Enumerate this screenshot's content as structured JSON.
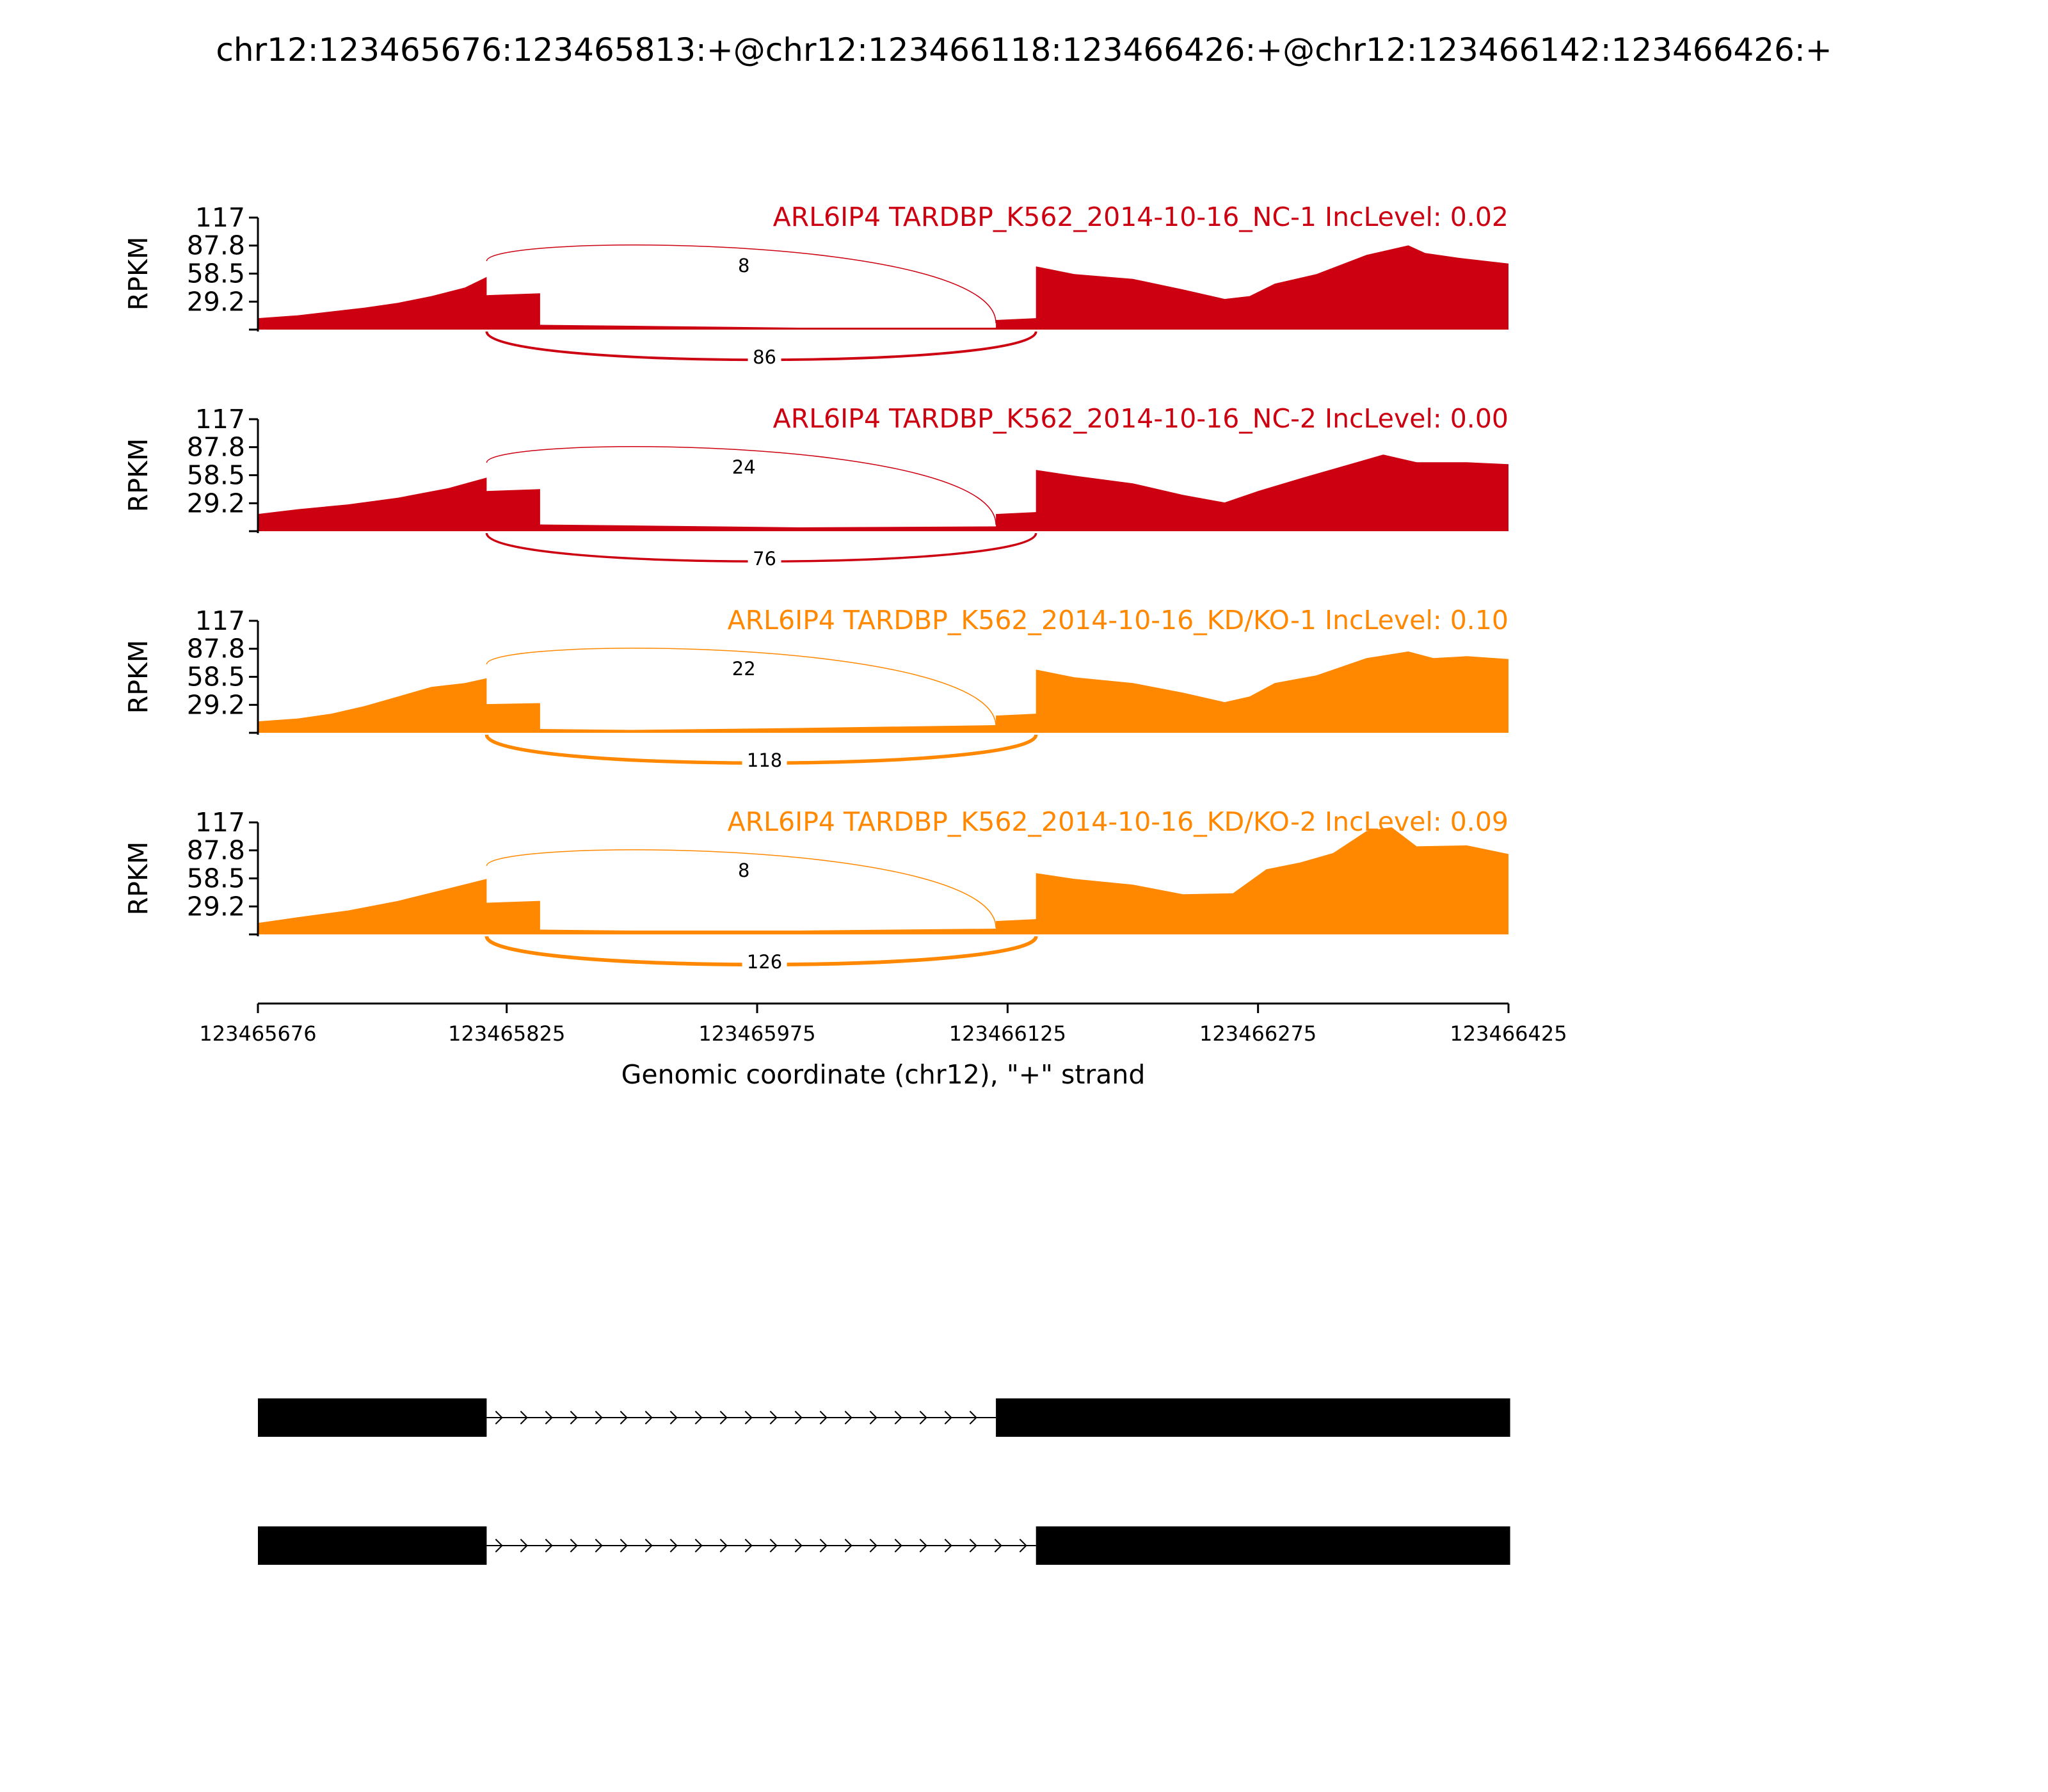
{
  "title": "chr12:123465676:123465813:+@chr12:123466118:123466426:+@chr12:123466142:123466426:+",
  "chart_data": {
    "type": "area",
    "title": "chr12:123465676:123465813:+@chr12:123466118:123466426:+@chr12:123466142:123466426:+",
    "xlabel": "Genomic coordinate (chr12), \"+\" strand",
    "ylabel": "RPKM",
    "xlim": [
      123465676,
      123466425
    ],
    "ylim": [
      0,
      117
    ],
    "x_ticks": [
      "123465676",
      "123465825",
      "123465975",
      "123466125",
      "123466275",
      "123466425"
    ],
    "y_ticks": [
      "117",
      "87.8",
      "58.5",
      "29.2"
    ],
    "tracks": [
      {
        "label": "ARL6IP4 TARDBP_K562_2014-10-16_NC-1 IncLevel: 0.02",
        "color": "#cc0011",
        "coverage": [
          [
            123465676,
            12
          ],
          [
            123465700,
            15
          ],
          [
            123465720,
            19
          ],
          [
            123465740,
            23
          ],
          [
            123465760,
            28
          ],
          [
            123465780,
            35
          ],
          [
            123465800,
            44
          ],
          [
            123465813,
            55
          ],
          [
            123465813,
            36
          ],
          [
            123465845,
            38
          ],
          [
            123465845,
            5
          ],
          [
            123465900,
            4
          ],
          [
            123466000,
            2
          ],
          [
            123466118,
            2
          ],
          [
            123466118,
            10
          ],
          [
            123466142,
            12
          ],
          [
            123466142,
            66
          ],
          [
            123466165,
            58
          ],
          [
            123466200,
            53
          ],
          [
            123466230,
            42
          ],
          [
            123466255,
            32
          ],
          [
            123466270,
            35
          ],
          [
            123466285,
            48
          ],
          [
            123466310,
            58
          ],
          [
            123466340,
            78
          ],
          [
            123466365,
            88
          ],
          [
            123466375,
            80
          ],
          [
            123466395,
            75
          ],
          [
            123466425,
            69
          ]
        ],
        "junctions": [
          {
            "from": 123465813,
            "to": 123466118,
            "count": "8",
            "side": "above"
          },
          {
            "from": 123465813,
            "to": 123466142,
            "count": "86",
            "side": "below"
          }
        ]
      },
      {
        "label": "ARL6IP4 TARDBP_K562_2014-10-16_NC-2 IncLevel: 0.00",
        "color": "#cc0011",
        "coverage": [
          [
            123465676,
            18
          ],
          [
            123465700,
            23
          ],
          [
            123465730,
            28
          ],
          [
            123465760,
            35
          ],
          [
            123465790,
            45
          ],
          [
            123465813,
            56
          ],
          [
            123465813,
            42
          ],
          [
            123465845,
            44
          ],
          [
            123465845,
            7
          ],
          [
            123465900,
            6
          ],
          [
            123466000,
            4
          ],
          [
            123466118,
            5
          ],
          [
            123466118,
            18
          ],
          [
            123466142,
            20
          ],
          [
            123466142,
            64
          ],
          [
            123466165,
            58
          ],
          [
            123466200,
            50
          ],
          [
            123466230,
            38
          ],
          [
            123466255,
            30
          ],
          [
            123466275,
            42
          ],
          [
            123466300,
            55
          ],
          [
            123466330,
            70
          ],
          [
            123466350,
            80
          ],
          [
            123466370,
            72
          ],
          [
            123466400,
            72
          ],
          [
            123466425,
            70
          ]
        ],
        "junctions": [
          {
            "from": 123465813,
            "to": 123466118,
            "count": "24",
            "side": "above"
          },
          {
            "from": 123465813,
            "to": 123466142,
            "count": "76",
            "side": "below"
          }
        ]
      },
      {
        "label": "ARL6IP4 TARDBP_K562_2014-10-16_KD/KO-1 IncLevel: 0.10",
        "color": "#ff8800",
        "coverage": [
          [
            123465676,
            12
          ],
          [
            123465700,
            15
          ],
          [
            123465720,
            20
          ],
          [
            123465740,
            28
          ],
          [
            123465760,
            38
          ],
          [
            123465780,
            48
          ],
          [
            123465800,
            52
          ],
          [
            123465813,
            57
          ],
          [
            123465813,
            30
          ],
          [
            123465845,
            31
          ],
          [
            123465845,
            4
          ],
          [
            123465900,
            3
          ],
          [
            123466000,
            5
          ],
          [
            123466118,
            8
          ],
          [
            123466118,
            18
          ],
          [
            123466142,
            20
          ],
          [
            123466142,
            66
          ],
          [
            123466165,
            58
          ],
          [
            123466200,
            52
          ],
          [
            123466230,
            42
          ],
          [
            123466255,
            32
          ],
          [
            123466270,
            38
          ],
          [
            123466285,
            52
          ],
          [
            123466310,
            60
          ],
          [
            123466340,
            78
          ],
          [
            123466365,
            85
          ],
          [
            123466380,
            78
          ],
          [
            123466400,
            80
          ],
          [
            123466425,
            77
          ]
        ],
        "junctions": [
          {
            "from": 123465813,
            "to": 123466118,
            "count": "22",
            "side": "above"
          },
          {
            "from": 123465813,
            "to": 123466142,
            "count": "118",
            "side": "below"
          }
        ]
      },
      {
        "label": "ARL6IP4 TARDBP_K562_2014-10-16_KD/KO-2 IncLevel: 0.09",
        "color": "#ff8800",
        "coverage": [
          [
            123465676,
            12
          ],
          [
            123465700,
            18
          ],
          [
            123465730,
            25
          ],
          [
            123465760,
            35
          ],
          [
            123465790,
            48
          ],
          [
            123465813,
            58
          ],
          [
            123465813,
            33
          ],
          [
            123465845,
            35
          ],
          [
            123465845,
            5
          ],
          [
            123465900,
            4
          ],
          [
            123466000,
            4
          ],
          [
            123466118,
            6
          ],
          [
            123466118,
            14
          ],
          [
            123466142,
            16
          ],
          [
            123466142,
            64
          ],
          [
            123466165,
            58
          ],
          [
            123466200,
            52
          ],
          [
            123466230,
            42
          ],
          [
            123466260,
            43
          ],
          [
            123466280,
            68
          ],
          [
            123466300,
            75
          ],
          [
            123466320,
            85
          ],
          [
            123466340,
            108
          ],
          [
            123466355,
            112
          ],
          [
            123466370,
            92
          ],
          [
            123466400,
            93
          ],
          [
            123466425,
            84
          ]
        ],
        "junctions": [
          {
            "from": 123465813,
            "to": 123466118,
            "count": "8",
            "side": "above"
          },
          {
            "from": 123465813,
            "to": 123466142,
            "count": "126",
            "side": "below"
          }
        ]
      }
    ],
    "isoforms": [
      {
        "exons": [
          [
            123465676,
            123465813
          ],
          [
            123466118,
            123466426
          ]
        ]
      },
      {
        "exons": [
          [
            123465676,
            123465813
          ],
          [
            123466142,
            123466426
          ]
        ]
      }
    ]
  }
}
